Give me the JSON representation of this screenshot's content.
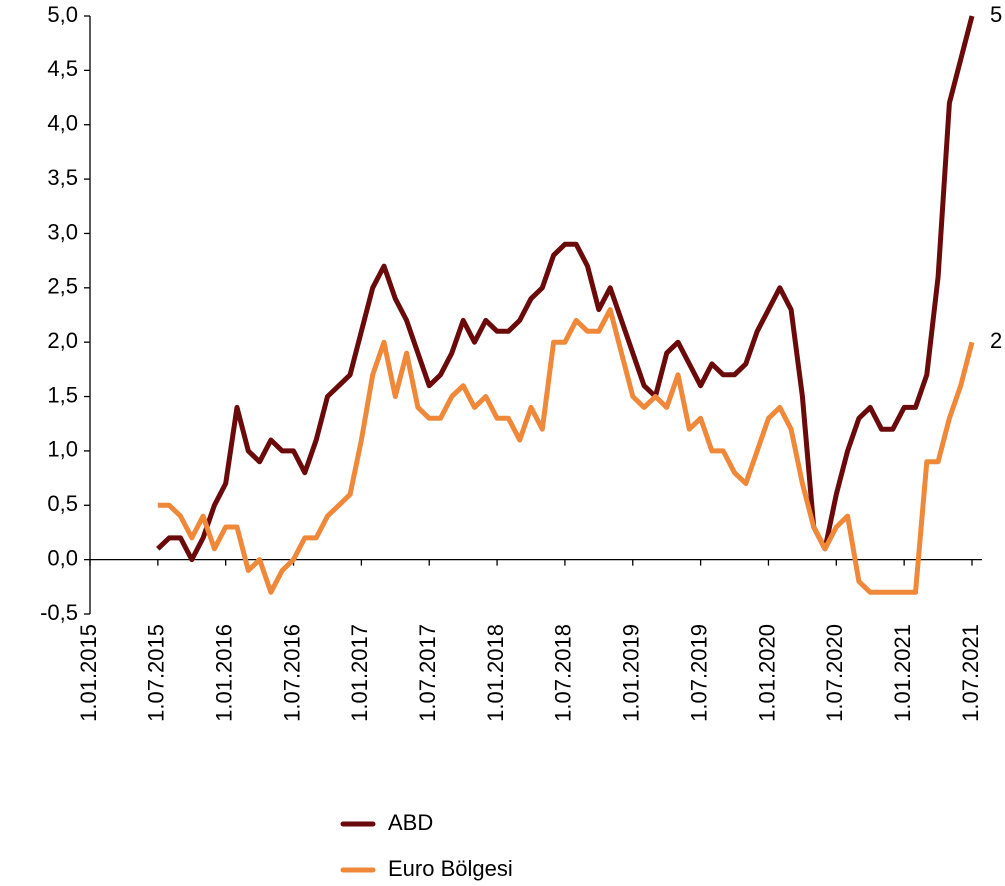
{
  "chart_data": {
    "type": "line",
    "x": [
      "1.07.2015",
      "1.08.2015",
      "1.09.2015",
      "1.10.2015",
      "1.11.2015",
      "1.12.2015",
      "1.01.2016",
      "1.02.2016",
      "1.03.2016",
      "1.04.2016",
      "1.05.2016",
      "1.06.2016",
      "1.07.2016",
      "1.08.2016",
      "1.09.2016",
      "1.10.2016",
      "1.11.2016",
      "1.12.2016",
      "1.01.2017",
      "1.02.2017",
      "1.03.2017",
      "1.04.2017",
      "1.05.2017",
      "1.06.2017",
      "1.07.2017",
      "1.08.2017",
      "1.09.2017",
      "1.10.2017",
      "1.11.2017",
      "1.12.2017",
      "1.01.2018",
      "1.02.2018",
      "1.03.2018",
      "1.04.2018",
      "1.05.2018",
      "1.06.2018",
      "1.07.2018",
      "1.08.2018",
      "1.09.2018",
      "1.10.2018",
      "1.11.2018",
      "1.12.2018",
      "1.01.2019",
      "1.02.2019",
      "1.03.2019",
      "1.04.2019",
      "1.05.2019",
      "1.06.2019",
      "1.07.2019",
      "1.08.2019",
      "1.09.2019",
      "1.10.2019",
      "1.11.2019",
      "1.12.2019",
      "1.01.2020",
      "1.02.2020",
      "1.03.2020",
      "1.04.2020",
      "1.05.2020",
      "1.06.2020",
      "1.07.2020",
      "1.08.2020",
      "1.09.2020",
      "1.10.2020",
      "1.11.2020",
      "1.12.2020",
      "1.01.2021",
      "1.02.2021",
      "1.03.2021",
      "1.04.2021",
      "1.05.2021",
      "1.06.2021",
      "1.07.2021"
    ],
    "series": [
      {
        "name": "ABD",
        "color": "#6b0a0a",
        "end_label": "5",
        "values": [
          0.1,
          0.2,
          0.2,
          0.0,
          0.2,
          0.5,
          0.7,
          1.4,
          1.0,
          0.9,
          1.1,
          1.0,
          1.0,
          0.8,
          1.1,
          1.5,
          1.6,
          1.7,
          2.1,
          2.5,
          2.7,
          2.4,
          2.2,
          1.9,
          1.6,
          1.7,
          1.9,
          2.2,
          2.0,
          2.2,
          2.1,
          2.1,
          2.2,
          2.4,
          2.5,
          2.8,
          2.9,
          2.9,
          2.7,
          2.3,
          2.5,
          2.2,
          1.9,
          1.6,
          1.5,
          1.9,
          2.0,
          1.8,
          1.6,
          1.8,
          1.7,
          1.7,
          1.8,
          2.1,
          2.3,
          2.5,
          2.3,
          1.5,
          0.3,
          0.1,
          0.6,
          1.0,
          1.3,
          1.4,
          1.2,
          1.2,
          1.4,
          1.4,
          1.7,
          2.6,
          4.2,
          4.6,
          5.0
        ]
      },
      {
        "name": "Euro Bölgesi",
        "color": "#f0883a",
        "end_label": "2",
        "values": [
          0.5,
          0.5,
          0.4,
          0.2,
          0.4,
          0.1,
          0.3,
          0.3,
          -0.1,
          0.0,
          -0.3,
          -0.1,
          0.0,
          0.2,
          0.2,
          0.4,
          0.5,
          0.6,
          1.1,
          1.7,
          2.0,
          1.5,
          1.9,
          1.4,
          1.3,
          1.3,
          1.5,
          1.6,
          1.4,
          1.5,
          1.3,
          1.3,
          1.1,
          1.4,
          1.2,
          2.0,
          2.0,
          2.2,
          2.1,
          2.1,
          2.3,
          1.9,
          1.5,
          1.4,
          1.5,
          1.4,
          1.7,
          1.2,
          1.3,
          1.0,
          1.0,
          0.8,
          0.7,
          1.0,
          1.3,
          1.4,
          1.2,
          0.7,
          0.3,
          0.1,
          0.3,
          0.4,
          -0.2,
          -0.3,
          -0.3,
          -0.3,
          -0.3,
          -0.3,
          0.9,
          0.9,
          1.3,
          1.6,
          2.0
        ]
      }
    ],
    "xlim": [
      "1.01.2015",
      "1.07.2021"
    ],
    "xticks": [
      "1.01.2015",
      "1.07.2015",
      "1.01.2016",
      "1.07.2016",
      "1.01.2017",
      "1.07.2017",
      "1.01.2018",
      "1.07.2018",
      "1.01.2019",
      "1.07.2019",
      "1.01.2020",
      "1.07.2020",
      "1.01.2021",
      "1.07.2021"
    ],
    "ylim": [
      -0.5,
      5
    ],
    "yticks": [
      {
        "value": -0.5,
        "label": "-0,5"
      },
      {
        "value": 0,
        "label": "0,0"
      },
      {
        "value": 0.5,
        "label": "0,5"
      },
      {
        "value": 1,
        "label": "1,0"
      },
      {
        "value": 1.5,
        "label": "1,5"
      },
      {
        "value": 2,
        "label": "2,0"
      },
      {
        "value": 2.5,
        "label": "2,5"
      },
      {
        "value": 3,
        "label": "3,0"
      },
      {
        "value": 3.5,
        "label": "3,5"
      },
      {
        "value": 4,
        "label": "4,0"
      },
      {
        "value": 4.5,
        "label": "4,5"
      },
      {
        "value": 5,
        "label": "5,0"
      }
    ],
    "legend": "bottom"
  }
}
